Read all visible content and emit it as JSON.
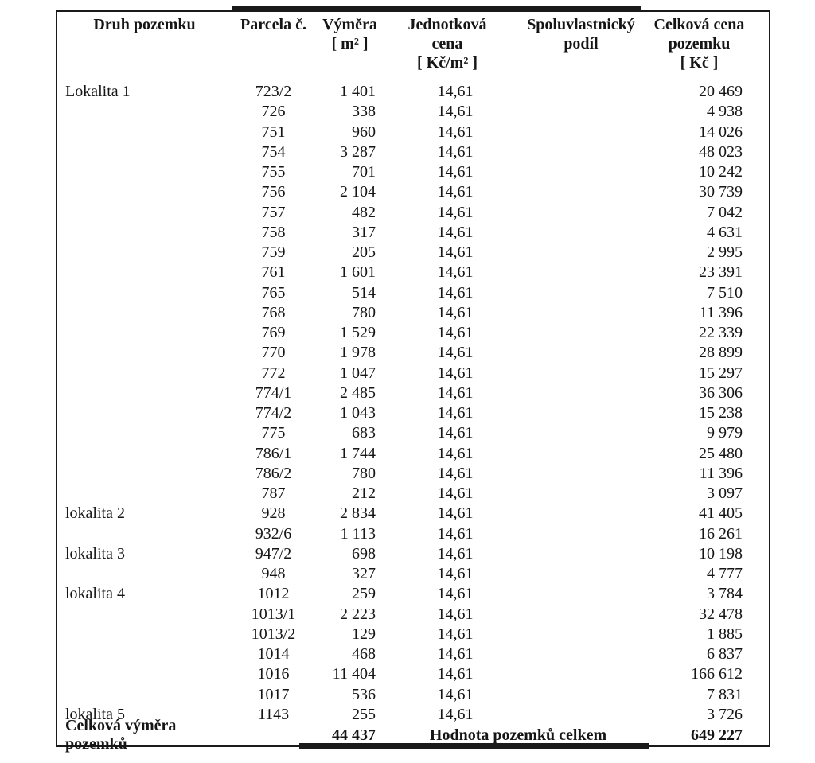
{
  "table": {
    "columns": [
      {
        "id": "druh-pozemku",
        "lines": [
          "Druh pozemku"
        ]
      },
      {
        "id": "parcela-cislo",
        "lines": [
          "Parcela č."
        ]
      },
      {
        "id": "vymera",
        "lines": [
          "Výměra",
          "[ m² ]"
        ]
      },
      {
        "id": "jednotkova-cena",
        "lines": [
          "Jednotková",
          "cena",
          "[ Kč/m² ]"
        ]
      },
      {
        "id": "spoluvlastnicky-podil",
        "lines": [
          "Spoluvlastnický",
          "podíl"
        ]
      },
      {
        "id": "celkova-cena",
        "lines": [
          "Celková cena",
          "pozemku",
          "[ Kč ]"
        ]
      }
    ],
    "rows": [
      [
        "Lokalita 1",
        "723/2",
        "1 401",
        "14,61",
        "",
        "20 469"
      ],
      [
        "",
        "726",
        "338",
        "14,61",
        "",
        "4 938"
      ],
      [
        "",
        "751",
        "960",
        "14,61",
        "",
        "14 026"
      ],
      [
        "",
        "754",
        "3 287",
        "14,61",
        "",
        "48 023"
      ],
      [
        "",
        "755",
        "701",
        "14,61",
        "",
        "10 242"
      ],
      [
        "",
        "756",
        "2 104",
        "14,61",
        "",
        "30 739"
      ],
      [
        "",
        "757",
        "482",
        "14,61",
        "",
        "7 042"
      ],
      [
        "",
        "758",
        "317",
        "14,61",
        "",
        "4 631"
      ],
      [
        "",
        "759",
        "205",
        "14,61",
        "",
        "2 995"
      ],
      [
        "",
        "761",
        "1 601",
        "14,61",
        "",
        "23 391"
      ],
      [
        "",
        "765",
        "514",
        "14,61",
        "",
        "7 510"
      ],
      [
        "",
        "768",
        "780",
        "14,61",
        "",
        "11 396"
      ],
      [
        "",
        "769",
        "1 529",
        "14,61",
        "",
        "22 339"
      ],
      [
        "",
        "770",
        "1 978",
        "14,61",
        "",
        "28 899"
      ],
      [
        "",
        "772",
        "1 047",
        "14,61",
        "",
        "15 297"
      ],
      [
        "",
        "774/1",
        "2 485",
        "14,61",
        "",
        "36 306"
      ],
      [
        "",
        "774/2",
        "1 043",
        "14,61",
        "",
        "15 238"
      ],
      [
        "",
        "775",
        "683",
        "14,61",
        "",
        "9 979"
      ],
      [
        "",
        "786/1",
        "1 744",
        "14,61",
        "",
        "25 480"
      ],
      [
        "",
        "786/2",
        "780",
        "14,61",
        "",
        "11 396"
      ],
      [
        "",
        "787",
        "212",
        "14,61",
        "",
        "3 097"
      ],
      [
        "lokalita 2",
        "928",
        "2 834",
        "14,61",
        "",
        "41 405"
      ],
      [
        "",
        "932/6",
        "1 113",
        "14,61",
        "",
        "16 261"
      ],
      [
        "lokalita 3",
        "947/2",
        "698",
        "14,61",
        "",
        "10 198"
      ],
      [
        "",
        "948",
        "327",
        "14,61",
        "",
        "4 777"
      ],
      [
        "lokalita 4",
        "1012",
        "259",
        "14,61",
        "",
        "3 784"
      ],
      [
        "",
        "1013/1",
        "2 223",
        "14,61",
        "",
        "32 478"
      ],
      [
        "",
        "1013/2",
        "129",
        "14,61",
        "",
        "1 885"
      ],
      [
        "",
        "1014",
        "468",
        "14,61",
        "",
        "6 837"
      ],
      [
        "",
        "1016",
        "11 404",
        "14,61",
        "",
        "166 612"
      ],
      [
        "",
        "1017",
        "536",
        "14,61",
        "",
        "7 831"
      ],
      [
        "lokalita 5",
        "1143",
        "255",
        "14,61",
        "",
        "3 726"
      ]
    ],
    "footer": {
      "area_label": "Celková výměra pozemků",
      "area_value": "44 437",
      "value_label": "Hodnota pozemků celkem",
      "value_total": "649 227"
    }
  },
  "colors": {
    "text": "#151515",
    "border": "#1a1a1a",
    "background": "#ffffff"
  }
}
